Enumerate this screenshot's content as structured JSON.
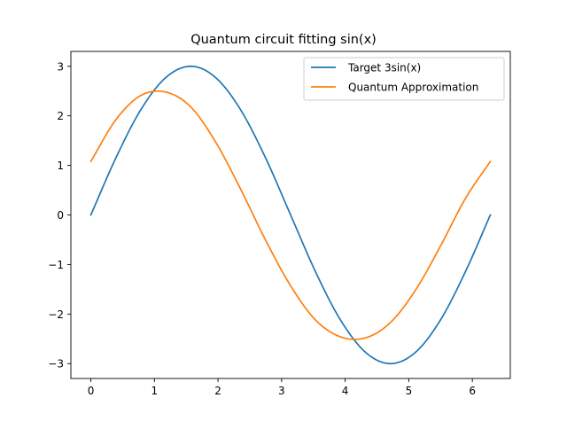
{
  "chart_data": {
    "type": "line",
    "title": "Quantum circuit fitting sin(x)",
    "xlabel": "",
    "ylabel": "",
    "xlim": [
      -0.314,
      6.597
    ],
    "ylim": [
      -3.3,
      3.3
    ],
    "x_ticks": [
      0,
      1,
      2,
      3,
      4,
      5,
      6
    ],
    "x_tick_labels": [
      "0",
      "1",
      "2",
      "3",
      "4",
      "5",
      "6"
    ],
    "y_ticks": [
      -3,
      -2,
      -1,
      0,
      1,
      2,
      3
    ],
    "y_tick_labels": [
      "−3",
      "−2",
      "−1",
      "0",
      "1",
      "2",
      "3"
    ],
    "grid": false,
    "legend_position": "top-right",
    "series": [
      {
        "name": "Target 3sin(x)",
        "color": "#1f77b4",
        "x": [
          0,
          0.393,
          0.785,
          1.178,
          1.571,
          1.963,
          2.356,
          2.749,
          3.142,
          3.534,
          3.927,
          4.32,
          4.712,
          5.105,
          5.498,
          5.89,
          6.283
        ],
        "y": [
          0,
          1.148,
          2.121,
          2.772,
          3.0,
          2.772,
          2.121,
          1.148,
          0,
          -1.148,
          -2.121,
          -2.772,
          -3.0,
          -2.772,
          -2.121,
          -1.148,
          0
        ]
      },
      {
        "name": "Quantum Approximation",
        "color": "#ff7f0e",
        "x": [
          0,
          0.393,
          0.785,
          1.178,
          1.571,
          1.963,
          2.356,
          2.749,
          3.142,
          3.534,
          3.927,
          4.32,
          4.712,
          5.105,
          5.498,
          5.89,
          6.283
        ],
        "y": [
          1.08,
          1.92,
          2.41,
          2.48,
          2.18,
          1.47,
          0.52,
          -0.51,
          -1.43,
          -2.12,
          -2.46,
          -2.48,
          -2.17,
          -1.52,
          -0.63,
          0.33,
          1.08
        ]
      }
    ]
  }
}
